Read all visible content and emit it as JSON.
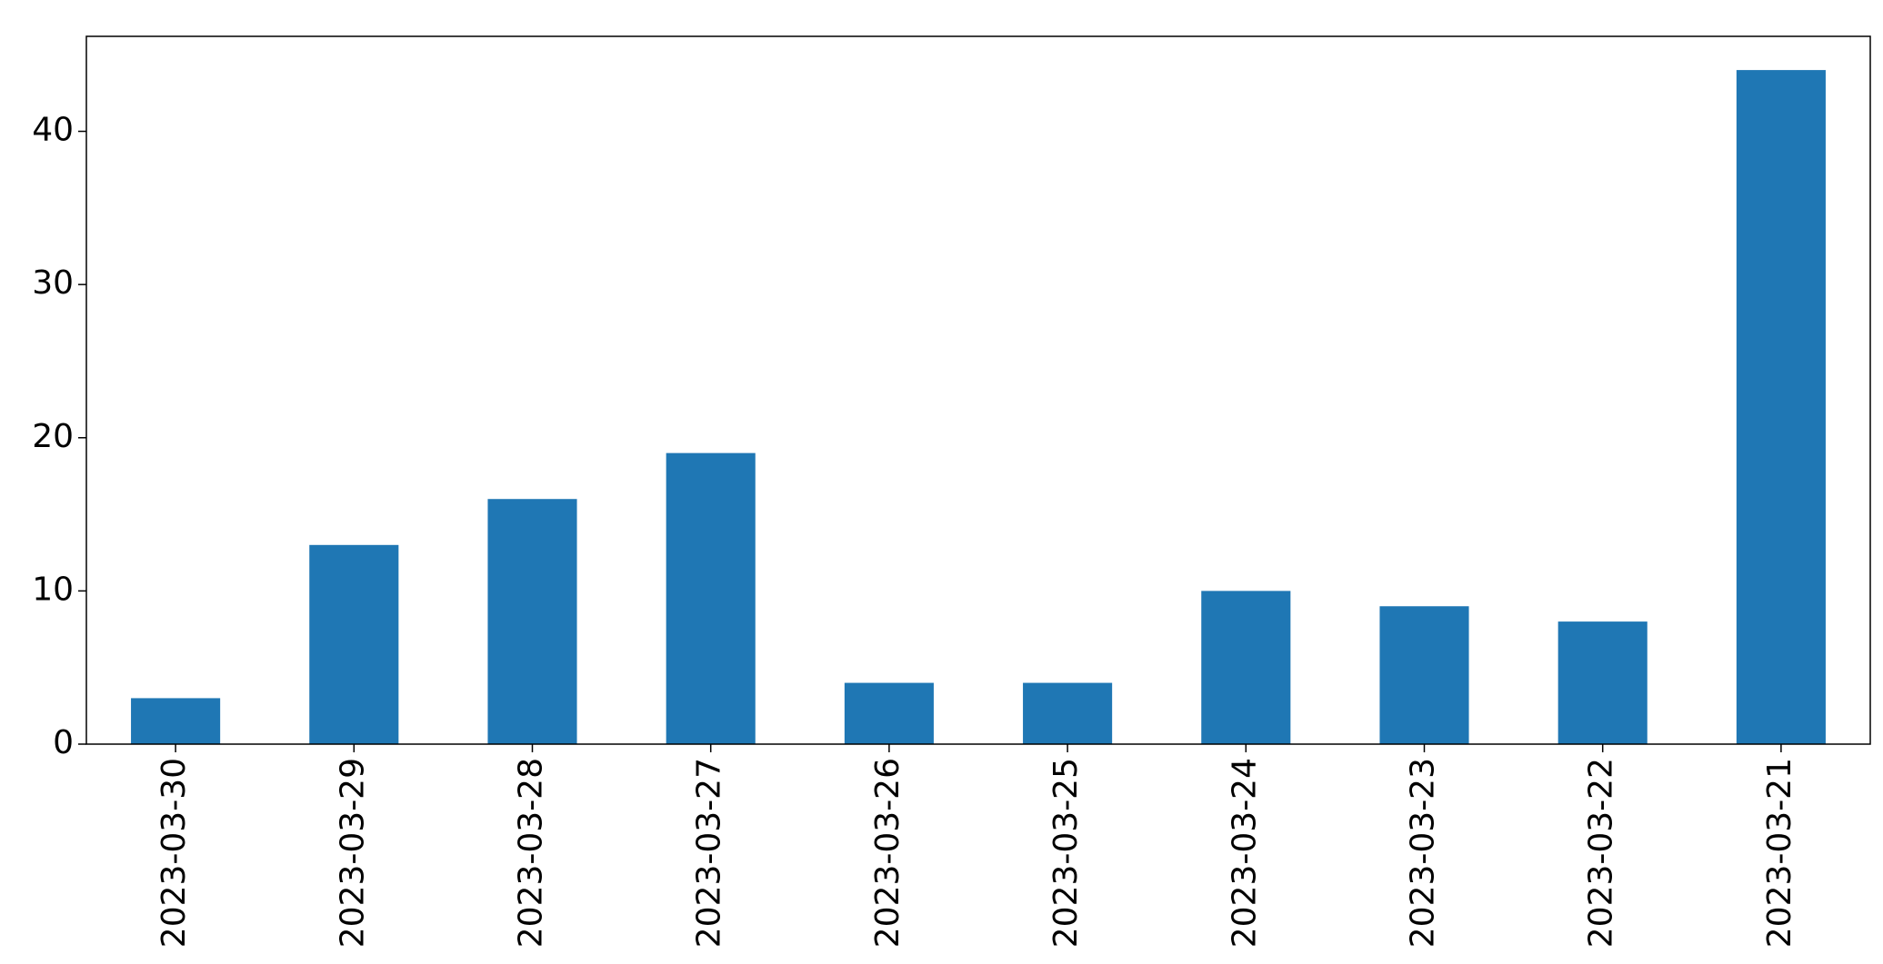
{
  "chart_data": {
    "type": "bar",
    "categories": [
      "2023-03-30",
      "2023-03-29",
      "2023-03-28",
      "2023-03-27",
      "2023-03-26",
      "2023-03-25",
      "2023-03-24",
      "2023-03-23",
      "2023-03-22",
      "2023-03-21"
    ],
    "values": [
      3,
      13,
      16,
      19,
      4,
      4,
      10,
      9,
      8,
      44
    ],
    "color": "#1f77b4",
    "ylim": [
      0,
      46.2
    ],
    "yticks": [
      0,
      10,
      20,
      30,
      40
    ],
    "grid": false
  }
}
